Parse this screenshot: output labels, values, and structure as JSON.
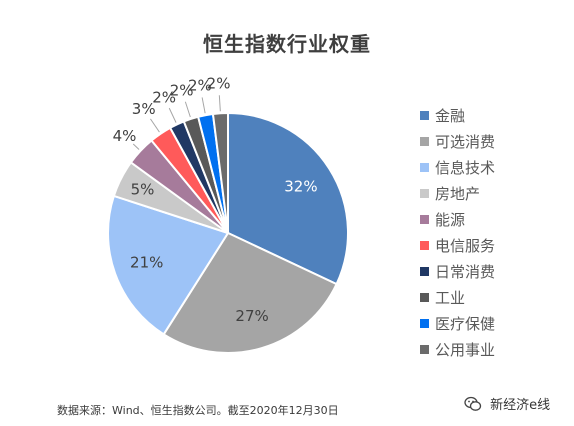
{
  "chart_data": {
    "type": "pie",
    "title": "恒生指数行业权重",
    "categories": [
      "金融",
      "可选消费",
      "信息技术",
      "房地产",
      "能源",
      "电信服务",
      "日常消费",
      "工业",
      "医疗保健",
      "公用事业"
    ],
    "values": [
      32,
      27,
      21,
      5,
      4,
      3,
      2,
      2,
      2,
      2
    ],
    "labels": [
      "32%",
      "27%",
      "21%",
      "5%",
      "4%",
      "3%",
      "2%",
      "2%",
      "2%",
      "2%"
    ],
    "colors": [
      "#4f81bd",
      "#a5a5a5",
      "#9dc3f7",
      "#c9c9c9",
      "#a67b9b",
      "#ff5a5a",
      "#203864",
      "#595959",
      "#0070f0",
      "#6b6b6b"
    ],
    "legend_position": "right",
    "start_angle": "12 o'clock",
    "direction": "clockwise"
  },
  "footer": {
    "source": "数据来源：Wind、恒生指数公司。截至2020年12月30日",
    "watermark": "新经济e线",
    "watermark_icon": "wechat-icon"
  }
}
